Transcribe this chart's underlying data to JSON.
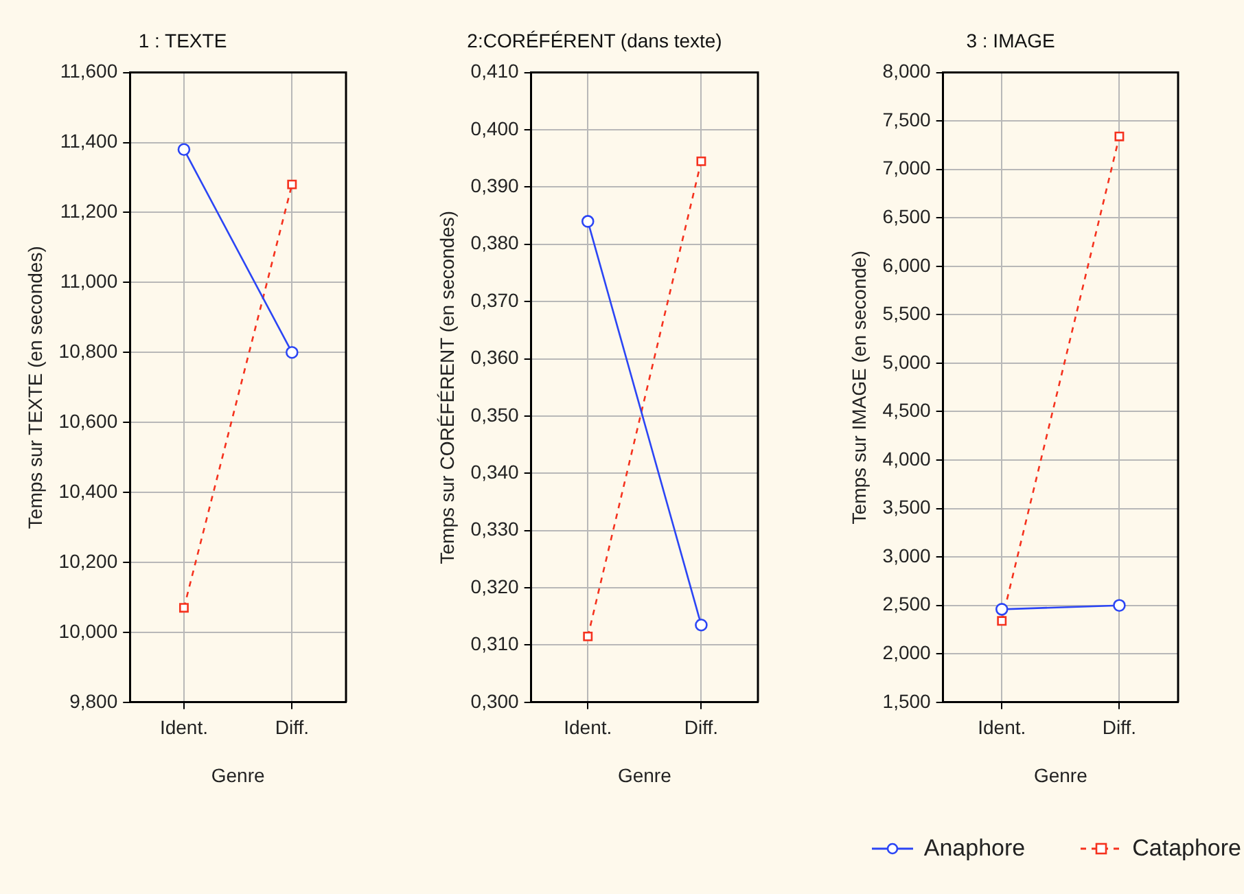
{
  "chart_data": [
    {
      "type": "line",
      "title": "1 : TEXTE",
      "xlabel": "Genre",
      "ylabel": "Temps sur TEXTE (en secondes)",
      "categories": [
        "Ident.",
        "Diff."
      ],
      "series": [
        {
          "color": "#2b45f5",
          "values": [
            11.38,
            10.8
          ],
          "marker": "circle",
          "line_style": "solid"
        },
        {
          "color": "#f5321e",
          "values": [
            10.07,
            11.28
          ],
          "marker": "square",
          "line_style": "dashed"
        }
      ],
      "ylim": [
        9.8,
        11.6
      ],
      "yticks": [
        {
          "value": 9.8,
          "label": "9,800"
        },
        {
          "value": 10.0,
          "label": "10,000"
        },
        {
          "value": 10.2,
          "label": "10,200"
        },
        {
          "value": 10.4,
          "label": "10,400"
        },
        {
          "value": 10.6,
          "label": "10,600"
        },
        {
          "value": 10.8,
          "label": "10,800"
        },
        {
          "value": 11.0,
          "label": "11,000"
        },
        {
          "value": 11.2,
          "label": "11,200"
        },
        {
          "value": 11.4,
          "label": "11,400"
        },
        {
          "value": 11.6,
          "label": "11,600"
        }
      ],
      "grid": true,
      "legend": false
    },
    {
      "type": "line",
      "title": "2:CORÉFÉRENT (dans texte)",
      "xlabel": "Genre",
      "ylabel": "Temps sur CORÉFÉRENT (en secondes)",
      "categories": [
        "Ident.",
        "Diff."
      ],
      "series": [
        {
          "color": "#2b45f5",
          "values": [
            0.384,
            0.3135
          ],
          "marker": "circle",
          "line_style": "solid"
        },
        {
          "color": "#f5321e",
          "values": [
            0.3115,
            0.3945
          ],
          "marker": "square",
          "line_style": "dashed"
        }
      ],
      "ylim": [
        0.3,
        0.41
      ],
      "yticks": [
        {
          "value": 0.3,
          "label": "0,300"
        },
        {
          "value": 0.31,
          "label": "0,310"
        },
        {
          "value": 0.32,
          "label": "0,320"
        },
        {
          "value": 0.33,
          "label": "0,330"
        },
        {
          "value": 0.34,
          "label": "0,340"
        },
        {
          "value": 0.35,
          "label": "0,350"
        },
        {
          "value": 0.36,
          "label": "0,360"
        },
        {
          "value": 0.37,
          "label": "0,370"
        },
        {
          "value": 0.38,
          "label": "0,380"
        },
        {
          "value": 0.39,
          "label": "0,390"
        },
        {
          "value": 0.4,
          "label": "0,400"
        },
        {
          "value": 0.41,
          "label": "0,410"
        }
      ],
      "grid": true,
      "legend": false
    },
    {
      "type": "line",
      "title": "3 : IMAGE",
      "xlabel": "Genre",
      "ylabel": "Temps sur IMAGE (en seconde)",
      "categories": [
        "Ident.",
        "Diff."
      ],
      "series": [
        {
          "name": "Anaphore",
          "color": "#2b45f5",
          "values": [
            2.46,
            2.5
          ],
          "marker": "circle",
          "line_style": "solid"
        },
        {
          "name": "Cataphore",
          "color": "#f5321e",
          "values": [
            2.34,
            7.34
          ],
          "marker": "square",
          "line_style": "dashed"
        }
      ],
      "ylim": [
        1.5,
        8.0
      ],
      "yticks": [
        {
          "value": 1.5,
          "label": "1,500"
        },
        {
          "value": 2.0,
          "label": "2,000"
        },
        {
          "value": 2.5,
          "label": "2,500"
        },
        {
          "value": 3.0,
          "label": "3,000"
        },
        {
          "value": 3.5,
          "label": "3,500"
        },
        {
          "value": 4.0,
          "label": "4,000"
        },
        {
          "value": 4.5,
          "label": "4,500"
        },
        {
          "value": 5.0,
          "label": "5,000"
        },
        {
          "value": 5.5,
          "label": "5,500"
        },
        {
          "value": 6.0,
          "label": "6,000"
        },
        {
          "value": 6.5,
          "label": "6,500"
        },
        {
          "value": 7.0,
          "label": "7,000"
        },
        {
          "value": 7.5,
          "label": "7,500"
        },
        {
          "value": 8.0,
          "label": "8,000"
        }
      ],
      "grid": true,
      "legend": "bottom right"
    }
  ]
}
